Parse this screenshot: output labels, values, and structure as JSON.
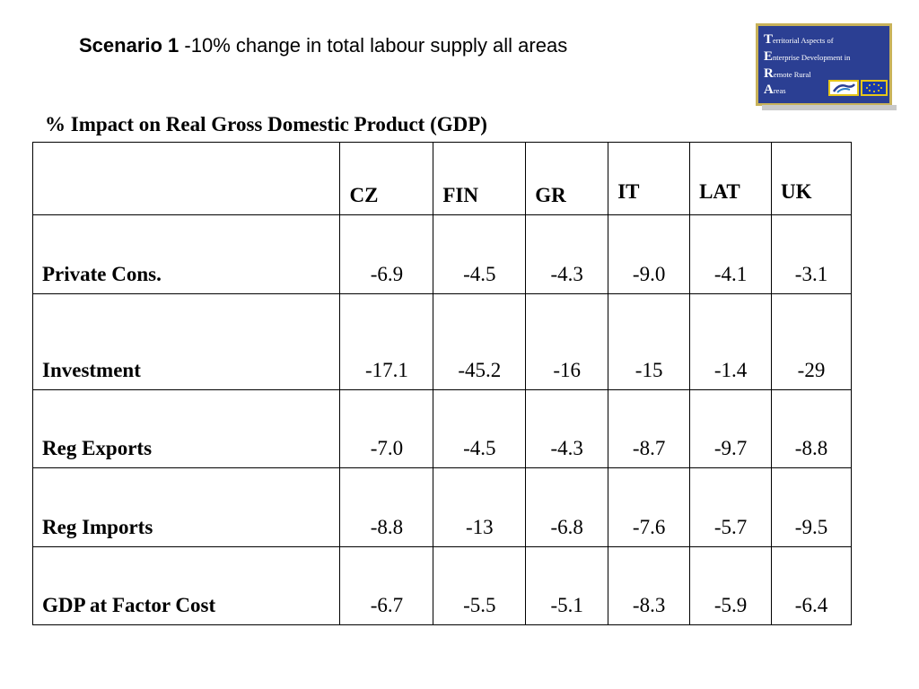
{
  "slide": {
    "title_bold": "Scenario  1",
    "title_rest": " -10%  change in total labour supply  all areas",
    "subtitle": "% Impact on Real Gross Domestic Product (GDP)"
  },
  "logo": {
    "line1_initial": "T",
    "line1_rest": "erritorial Aspects of",
    "line2_initial": "E",
    "line2_rest": "nterprise Development in",
    "line3_initial": "R",
    "line3_rest": "emote Rural",
    "line4_initial": "A",
    "line4_rest": "reas",
    "colors": {
      "background": "#2b3f93",
      "border": "#c8b25a",
      "badge_border": "#e6c619"
    },
    "icons": [
      "tera-emblem",
      "eu-flag-icon"
    ]
  },
  "table": {
    "columns": [
      "CZ",
      "FIN",
      "GR",
      "IT",
      "LAT",
      "UK"
    ],
    "rows": [
      {
        "label": "Private Cons.",
        "values": [
          "-6.9",
          "-4.5",
          "-4.3",
          "-9.0",
          "-4.1",
          "-3.1"
        ]
      },
      {
        "label": "Investment",
        "values": [
          "-17.1",
          "-45.2",
          "-16",
          "-15",
          "-1.4",
          "-29"
        ]
      },
      {
        "label": "Reg Exports",
        "values": [
          "-7.0",
          "-4.5",
          "-4.3",
          "-8.7",
          "-9.7",
          "-8.8"
        ]
      },
      {
        "label": "Reg Imports",
        "values": [
          "-8.8",
          "-13",
          "-6.8",
          "-7.6",
          "-5.7",
          "-9.5"
        ]
      },
      {
        "label": "GDP at Factor Cost",
        "values": [
          "-6.7",
          "-5.5",
          "-5.1",
          "-8.3",
          "-5.9",
          "-6.4"
        ]
      }
    ]
  }
}
